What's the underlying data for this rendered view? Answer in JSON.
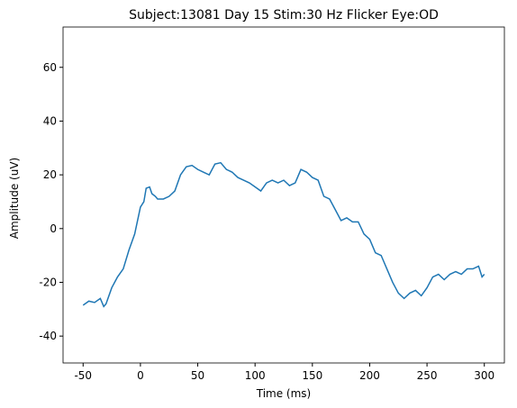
{
  "chart_data": {
    "type": "line",
    "title": "Subject:13081 Day 15 Stim:30 Hz Flicker Eye:OD",
    "xlabel": "Time (ms)",
    "ylabel": "Amplitude (uV)",
    "x": [
      -50,
      -45,
      -40,
      -35,
      -32,
      -30,
      -25,
      -20,
      -15,
      -10,
      -5,
      0,
      3,
      5,
      8,
      10,
      13,
      15,
      20,
      25,
      30,
      35,
      40,
      45,
      50,
      55,
      60,
      65,
      70,
      75,
      80,
      85,
      90,
      95,
      100,
      105,
      110,
      115,
      120,
      125,
      130,
      135,
      140,
      145,
      150,
      155,
      160,
      165,
      170,
      175,
      180,
      185,
      190,
      195,
      200,
      205,
      210,
      215,
      220,
      225,
      230,
      235,
      240,
      245,
      250,
      255,
      260,
      265,
      270,
      275,
      280,
      285,
      290,
      295,
      298,
      300
    ],
    "series": [
      {
        "color": "#1f77b4",
        "values": [
          -28.5,
          -27,
          -27.5,
          -26,
          -29,
          -28,
          -22,
          -18,
          -15,
          -8,
          -2,
          8,
          10,
          15,
          15.5,
          13,
          12,
          11,
          11,
          12,
          14,
          20,
          23,
          23.5,
          22,
          21,
          20,
          24,
          24.5,
          22,
          21,
          19,
          18,
          17,
          15.5,
          14,
          17,
          18,
          17,
          18,
          16,
          17,
          22,
          21,
          19,
          18,
          12,
          11,
          7,
          3,
          4,
          2.5,
          2.5,
          -2,
          -4,
          -9,
          -10,
          -15,
          -20,
          -24,
          -26,
          -24,
          -23,
          -25,
          -22,
          -18,
          -17,
          -19,
          -17,
          -16,
          -17,
          -15,
          -15,
          -14,
          -18,
          -17
        ]
      }
    ],
    "xlim": [
      -67.5,
      317.5
    ],
    "xticks": [
      -50,
      0,
      50,
      100,
      150,
      200,
      250,
      300
    ],
    "ylim": [
      -50,
      75
    ],
    "yticks": [
      -40,
      -20,
      0,
      20,
      40,
      60
    ]
  }
}
